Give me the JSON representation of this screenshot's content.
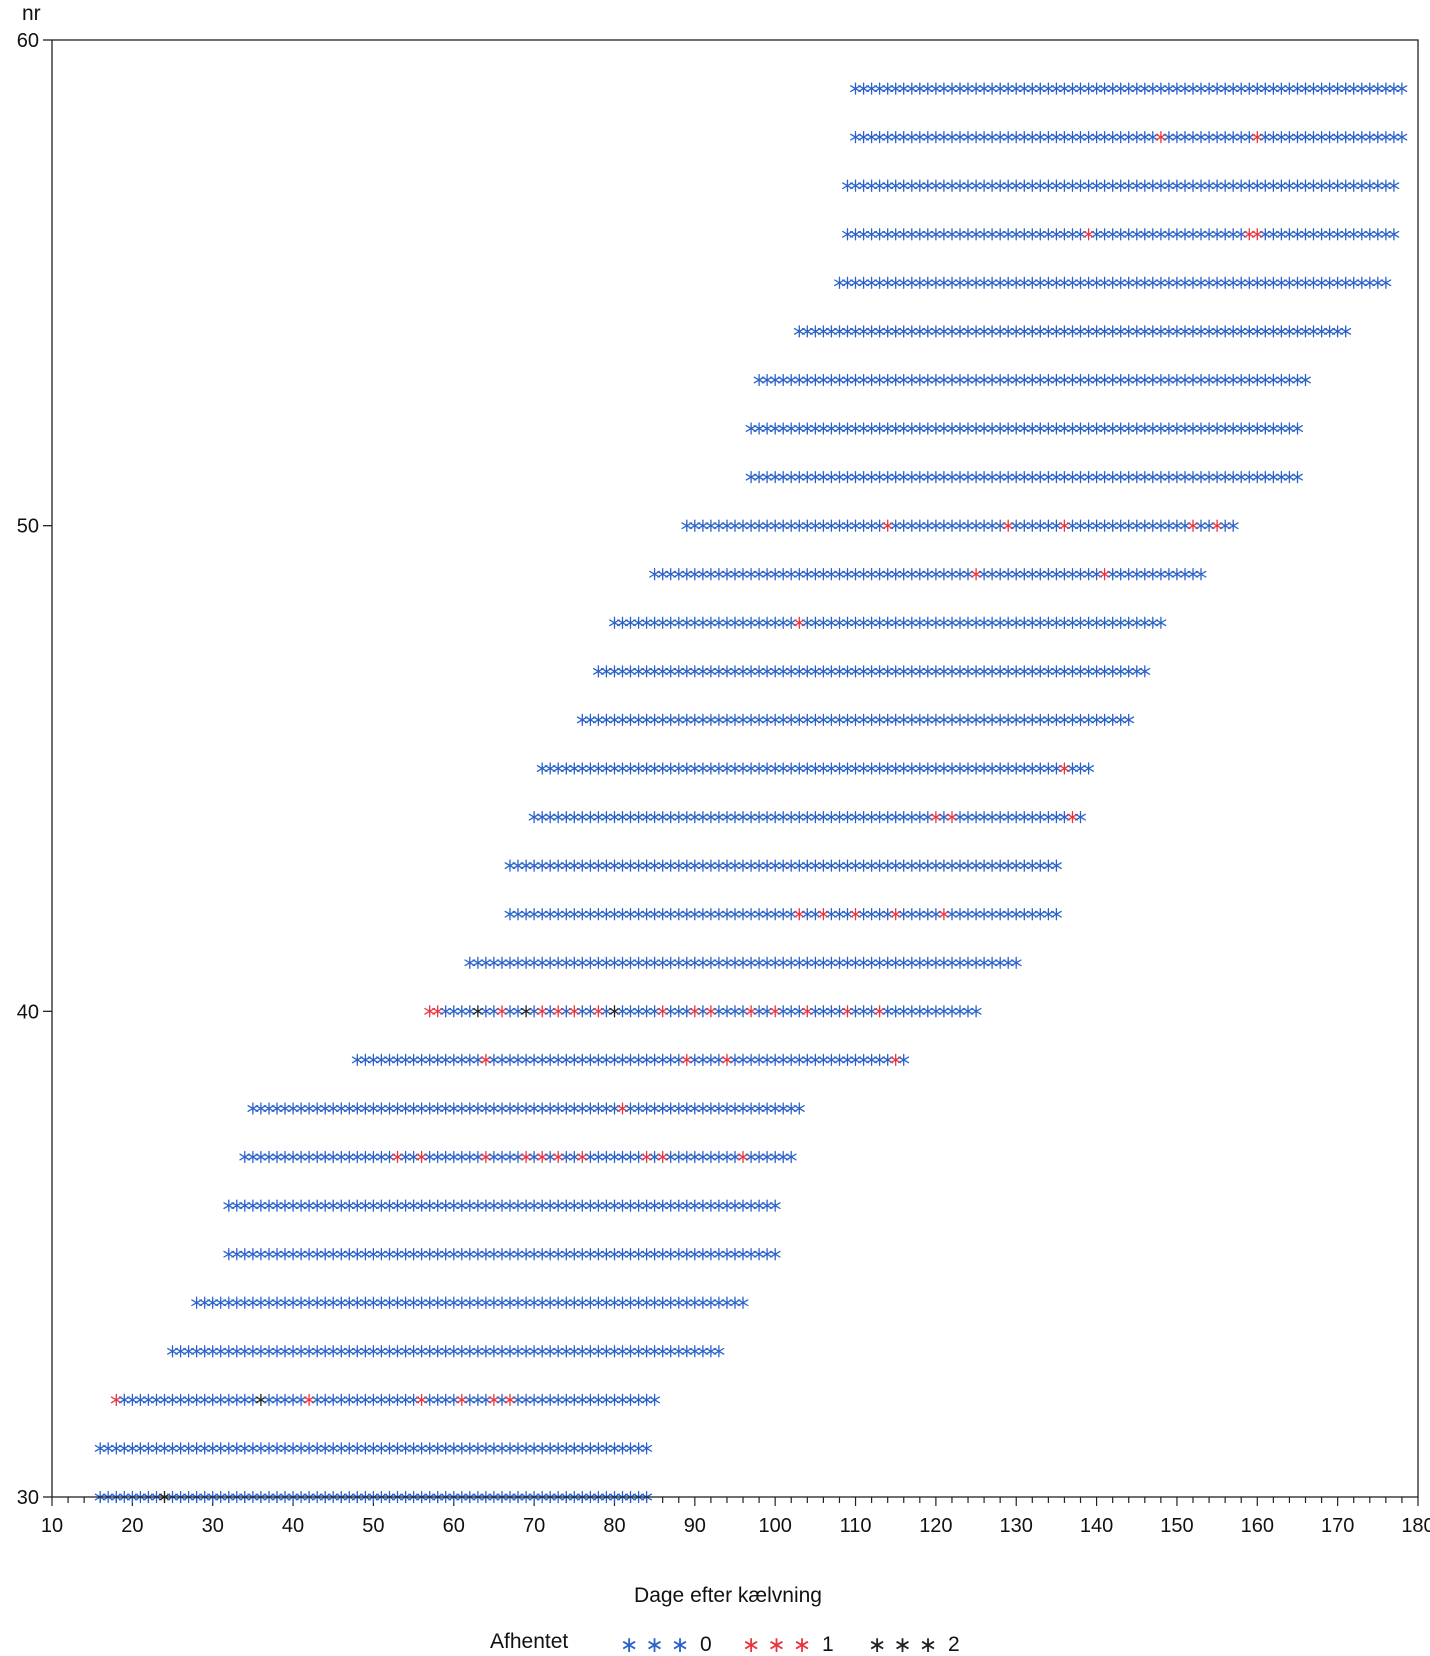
{
  "chart_data": {
    "type": "scatter",
    "title": "",
    "xlabel": "Dage efter kælvning",
    "ylabel": "nr",
    "xlim": [
      10,
      180
    ],
    "ylim": [
      30,
      60
    ],
    "x_ticks": [
      10,
      20,
      30,
      40,
      50,
      60,
      70,
      80,
      90,
      100,
      110,
      120,
      130,
      140,
      150,
      160,
      170,
      180
    ],
    "x_tick_labels": [
      "10",
      "20",
      "30",
      "40",
      "50",
      "60",
      "70",
      "80",
      "90",
      "100",
      "110",
      "120",
      "130",
      "140",
      "150",
      "160",
      "170",
      "180"
    ],
    "y_ticks": [
      30,
      40,
      50,
      60
    ],
    "y_tick_labels": [
      "30",
      "40",
      "50",
      "60"
    ],
    "marker": "*",
    "grid": false,
    "legend": {
      "title": "Afhentet",
      "placement": "bottom-center",
      "entries": [
        {
          "label": "0",
          "color": "#2a62c9"
        },
        {
          "label": "1",
          "color": "#e8343e"
        },
        {
          "label": "2",
          "color": "#222222"
        }
      ]
    },
    "series": [
      {
        "name": "0",
        "color": "#2a62c9"
      },
      {
        "name": "1",
        "color": "#e8343e"
      },
      {
        "name": "2",
        "color": "#222222"
      }
    ],
    "rows": [
      {
        "nr": 30,
        "x_start": 16,
        "x_end": 84,
        "events": [
          {
            "x": 24,
            "value": 2
          }
        ]
      },
      {
        "nr": 31,
        "x_start": 16,
        "x_end": 84,
        "events": []
      },
      {
        "nr": 32,
        "x_start": 18,
        "x_end": 85,
        "events": [
          {
            "x": 18,
            "value": 1
          },
          {
            "x": 36,
            "value": 2
          },
          {
            "x": 42,
            "value": 1
          },
          {
            "x": 56,
            "value": 1
          },
          {
            "x": 61,
            "value": 1
          },
          {
            "x": 65,
            "value": 1
          },
          {
            "x": 67,
            "value": 1
          }
        ]
      },
      {
        "nr": 33,
        "x_start": 25,
        "x_end": 93,
        "events": []
      },
      {
        "nr": 34,
        "x_start": 28,
        "x_end": 96,
        "events": []
      },
      {
        "nr": 35,
        "x_start": 32,
        "x_end": 100,
        "events": []
      },
      {
        "nr": 36,
        "x_start": 32,
        "x_end": 100,
        "events": []
      },
      {
        "nr": 37,
        "x_start": 34,
        "x_end": 102,
        "events": [
          {
            "x": 53,
            "value": 1
          },
          {
            "x": 56,
            "value": 1
          },
          {
            "x": 64,
            "value": 1
          },
          {
            "x": 69,
            "value": 1
          },
          {
            "x": 71,
            "value": 1
          },
          {
            "x": 73,
            "value": 1
          },
          {
            "x": 76,
            "value": 1
          },
          {
            "x": 84,
            "value": 1
          },
          {
            "x": 86,
            "value": 1
          },
          {
            "x": 96,
            "value": 1
          }
        ]
      },
      {
        "nr": 38,
        "x_start": 35,
        "x_end": 103,
        "events": [
          {
            "x": 81,
            "value": 1
          }
        ]
      },
      {
        "nr": 39,
        "x_start": 48,
        "x_end": 116,
        "events": [
          {
            "x": 64,
            "value": 1
          },
          {
            "x": 89,
            "value": 1
          },
          {
            "x": 94,
            "value": 1
          },
          {
            "x": 115,
            "value": 1
          }
        ]
      },
      {
        "nr": 40,
        "x_start": 57,
        "x_end": 125,
        "events": [
          {
            "x": 57,
            "value": 1
          },
          {
            "x": 58,
            "value": 1
          },
          {
            "x": 63,
            "value": 2
          },
          {
            "x": 66,
            "value": 1
          },
          {
            "x": 69,
            "value": 2
          },
          {
            "x": 71,
            "value": 1
          },
          {
            "x": 73,
            "value": 1
          },
          {
            "x": 75,
            "value": 1
          },
          {
            "x": 78,
            "value": 1
          },
          {
            "x": 80,
            "value": 2
          },
          {
            "x": 86,
            "value": 1
          },
          {
            "x": 90,
            "value": 1
          },
          {
            "x": 92,
            "value": 1
          },
          {
            "x": 97,
            "value": 1
          },
          {
            "x": 100,
            "value": 1
          },
          {
            "x": 104,
            "value": 1
          },
          {
            "x": 109,
            "value": 1
          },
          {
            "x": 113,
            "value": 1
          }
        ]
      },
      {
        "nr": 41,
        "x_start": 62,
        "x_end": 130,
        "events": []
      },
      {
        "nr": 42,
        "x_start": 67,
        "x_end": 135,
        "events": [
          {
            "x": 103,
            "value": 1
          },
          {
            "x": 106,
            "value": 1
          },
          {
            "x": 110,
            "value": 1
          },
          {
            "x": 115,
            "value": 1
          },
          {
            "x": 121,
            "value": 1
          }
        ]
      },
      {
        "nr": 43,
        "x_start": 67,
        "x_end": 135,
        "events": []
      },
      {
        "nr": 44,
        "x_start": 70,
        "x_end": 138,
        "events": [
          {
            "x": 120,
            "value": 1
          },
          {
            "x": 122,
            "value": 1
          },
          {
            "x": 137,
            "value": 1
          }
        ]
      },
      {
        "nr": 45,
        "x_start": 71,
        "x_end": 139,
        "events": [
          {
            "x": 136,
            "value": 1
          }
        ]
      },
      {
        "nr": 46,
        "x_start": 76,
        "x_end": 144,
        "events": []
      },
      {
        "nr": 47,
        "x_start": 78,
        "x_end": 146,
        "events": []
      },
      {
        "nr": 48,
        "x_start": 80,
        "x_end": 148,
        "events": [
          {
            "x": 103,
            "value": 1
          }
        ]
      },
      {
        "nr": 49,
        "x_start": 85,
        "x_end": 153,
        "events": [
          {
            "x": 125,
            "value": 1
          },
          {
            "x": 141,
            "value": 1
          }
        ]
      },
      {
        "nr": 50,
        "x_start": 89,
        "x_end": 157,
        "events": [
          {
            "x": 114,
            "value": 1
          },
          {
            "x": 129,
            "value": 1
          },
          {
            "x": 136,
            "value": 1
          },
          {
            "x": 152,
            "value": 1
          },
          {
            "x": 155,
            "value": 1
          }
        ]
      },
      {
        "nr": 51,
        "x_start": 97,
        "x_end": 165,
        "events": []
      },
      {
        "nr": 52,
        "x_start": 97,
        "x_end": 165,
        "events": []
      },
      {
        "nr": 53,
        "x_start": 98,
        "x_end": 166,
        "events": []
      },
      {
        "nr": 54,
        "x_start": 103,
        "x_end": 171,
        "events": []
      },
      {
        "nr": 55,
        "x_start": 108,
        "x_end": 176,
        "events": []
      },
      {
        "nr": 56,
        "x_start": 109,
        "x_end": 177,
        "events": [
          {
            "x": 139,
            "value": 1
          },
          {
            "x": 159,
            "value": 1
          },
          {
            "x": 160,
            "value": 1
          }
        ]
      },
      {
        "nr": 57,
        "x_start": 109,
        "x_end": 177,
        "events": []
      },
      {
        "nr": 58,
        "x_start": 110,
        "x_end": 178,
        "events": [
          {
            "x": 148,
            "value": 1
          },
          {
            "x": 160,
            "value": 1
          }
        ]
      },
      {
        "nr": 59,
        "x_start": 110,
        "x_end": 178,
        "events": []
      }
    ]
  }
}
